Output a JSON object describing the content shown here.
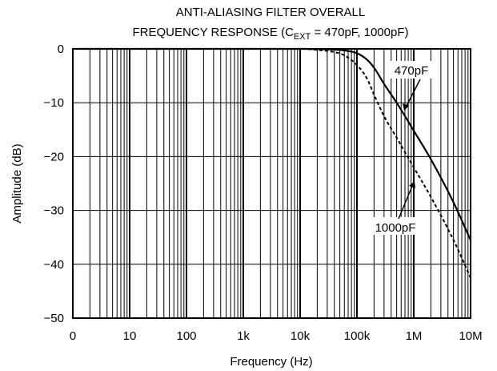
{
  "chart_data": {
    "type": "line",
    "title_line1": "ANTI-ALIASING FILTER OVERALL",
    "title_line2_pre": "FREQUENCY RESPONSE (C",
    "title_line2_sub": "EXT",
    "title_line2_post": " = 470pF, 1000pF)",
    "xlabel": "Frequency (Hz)",
    "ylabel": "Amplitude (dB)",
    "x_scale": "log",
    "x_tick_labels": [
      "0",
      "10",
      "100",
      "1k",
      "10k",
      "100k",
      "1M",
      "10M"
    ],
    "y_ticks": [
      0,
      -10,
      -20,
      -30,
      -40,
      -50
    ],
    "y_tick_labels": [
      "0",
      "−10",
      "−20",
      "−30",
      "−40",
      "−50"
    ],
    "ylim": [
      -50,
      0
    ],
    "grid": true,
    "series": [
      {
        "name": "470pF",
        "style": "solid",
        "x": [
          1,
          10,
          100,
          1000,
          10000,
          30000,
          60000,
          100000,
          150000,
          200000,
          300000,
          500000,
          1000000,
          2000000,
          5000000,
          10000000
        ],
        "values": [
          0,
          0,
          0,
          0,
          0,
          -0.1,
          -0.3,
          -0.8,
          -2.0,
          -3.5,
          -6.5,
          -10.0,
          -15.2,
          -20.5,
          -28.5,
          -35.5
        ]
      },
      {
        "name": "1000pF",
        "style": "dashed",
        "x": [
          1,
          10,
          100,
          1000,
          10000,
          20000,
          40000,
          60000,
          100000,
          150000,
          200000,
          300000,
          500000,
          1000000,
          2000000,
          5000000,
          10000000
        ],
        "values": [
          0,
          0,
          0,
          0,
          0,
          -0.2,
          -0.6,
          -1.2,
          -3.0,
          -5.5,
          -8.5,
          -12.5,
          -16.5,
          -22.0,
          -27.5,
          -35.5,
          -42.5
        ]
      }
    ]
  }
}
